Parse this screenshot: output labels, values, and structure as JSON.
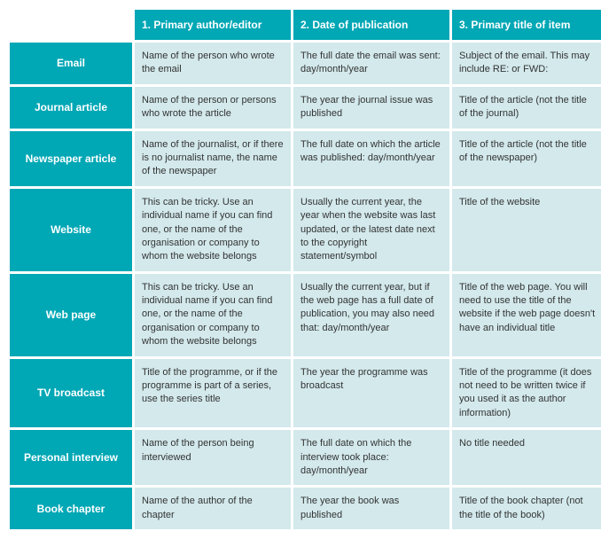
{
  "table": {
    "columns": [
      {
        "label": "1. Primary author/editor"
      },
      {
        "label": "2. Date of publication"
      },
      {
        "label": "3. Primary title of item"
      }
    ],
    "rows": [
      {
        "header": "Email",
        "cells": [
          "Name of the person who wrote the email",
          "The full date the email was sent: day/month/year",
          "Subject of the email. This may include RE: or FWD:"
        ]
      },
      {
        "header": "Journal article",
        "cells": [
          "Name of the person or persons who wrote the article",
          "The year the journal issue was published",
          "Title of the article (not the title of the journal)"
        ]
      },
      {
        "header": "Newspaper article",
        "cells": [
          "Name of the journalist, or if there is no journalist name, the name of the newspaper",
          "The full date on which the article was published: day/month/year",
          "Title of the article (not the title of the newspaper)"
        ]
      },
      {
        "header": "Website",
        "cells": [
          "This can be tricky. Use an individual name if you can find one, or the name of the organisation or company to whom the website belongs",
          "Usually the current year, the year when the website was last updated, or the latest date next to the copyright statement/symbol",
          "Title of the website"
        ]
      },
      {
        "header": "Web page",
        "cells": [
          "This can be tricky. Use an individual name if you can find one, or the name of the organisation or company to whom the website belongs",
          "Usually the current year, but if the web page has a full date of publication, you may also need that: day/month/year",
          "Title of the web page. You will need to use the title of the website if the web page doesn't have an individual title"
        ]
      },
      {
        "header": "TV broadcast",
        "cells": [
          "Title of the programme, or if the programme is part of a series, use the series title",
          "The year the programme was broadcast",
          "Title of the programme (it does not need to be written twice if you used it as the author information)"
        ]
      },
      {
        "header": "Personal interview",
        "cells": [
          "Name of the person being interviewed",
          "The full date on which the interview took place: day/month/year",
          "No title needed"
        ]
      },
      {
        "header": "Book chapter",
        "cells": [
          "Name of the author of the chapter",
          "The year the book was published",
          "Title of the book chapter (not the title of the book)"
        ]
      }
    ],
    "style": {
      "header_bg": "#00a7b5",
      "header_fg": "#ffffff",
      "cell_bg": "#d3e9ec",
      "cell_fg": "#333333",
      "header_fontsize": 12,
      "cell_fontsize": 11,
      "border_spacing": 3
    }
  }
}
